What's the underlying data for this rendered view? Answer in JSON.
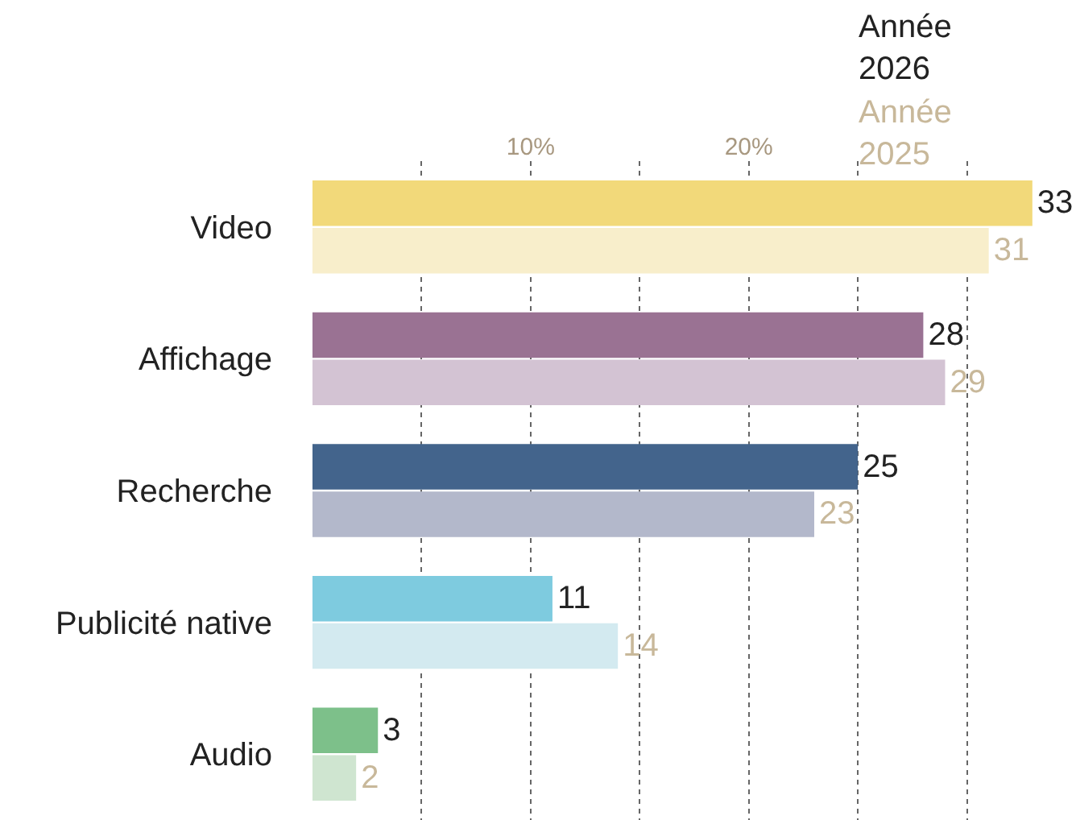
{
  "chart_data": {
    "type": "bar",
    "orientation": "horizontal",
    "categories": [
      "Video",
      "Affichage",
      "Recherche",
      "Publicité native",
      "Audio"
    ],
    "series": [
      {
        "name": "Année 2026",
        "color": "#222222",
        "colors": [
          "#f2d97a",
          "#9a7293",
          "#43648c",
          "#7ecbdf",
          "#7dc08a"
        ],
        "values": [
          33,
          28,
          25,
          11,
          3
        ]
      },
      {
        "name": "Année 2025",
        "color": "#c8b89a",
        "colors": [
          "#f8eecb",
          "#d3c3d3",
          "#b3b8cb",
          "#d3eaf0",
          "#cfe5d0"
        ],
        "values": [
          31,
          29,
          23,
          14,
          2
        ]
      }
    ],
    "xlim": [
      0,
      35
    ],
    "xticks": [
      {
        "value": 5,
        "label": null
      },
      {
        "value": 10,
        "label": "10%"
      },
      {
        "value": 15,
        "label": null
      },
      {
        "value": 20,
        "label": "20%"
      },
      {
        "value": 25,
        "label": null
      },
      {
        "value": 30,
        "label": null
      }
    ],
    "grid": "x",
    "data_labels": true,
    "legend": "top right"
  }
}
